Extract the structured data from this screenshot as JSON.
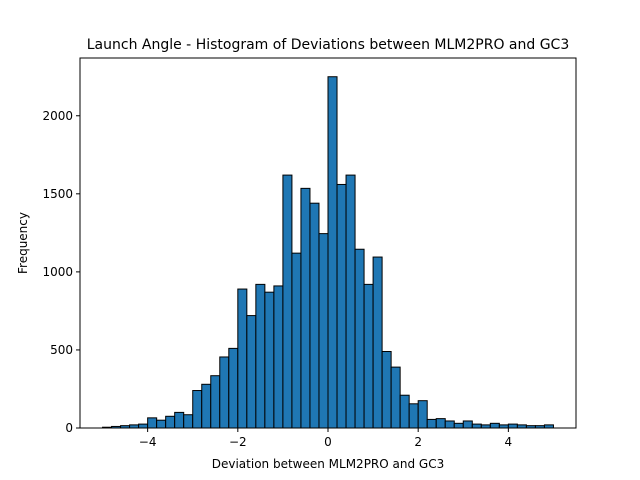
{
  "chart_data": {
    "type": "bar",
    "title": "Launch Angle - Histogram of Deviations between MLM2PRO and GC3",
    "xlabel": "Deviation between MLM2PRO and GC3",
    "ylabel": "Frequency",
    "xlim": [
      -5.5,
      5.5
    ],
    "ylim": [
      0,
      2370
    ],
    "bin_edges_start": -5.0,
    "bin_width": 0.2,
    "color": "#1f77b4",
    "edge_color": "#000000",
    "values": [
      5,
      10,
      15,
      20,
      25,
      65,
      50,
      75,
      100,
      85,
      240,
      280,
      335,
      455,
      510,
      890,
      720,
      920,
      870,
      910,
      1620,
      1120,
      1535,
      1440,
      1245,
      2250,
      1560,
      1620,
      1145,
      920,
      1095,
      490,
      390,
      210,
      155,
      175,
      55,
      60,
      45,
      30,
      45,
      25,
      20,
      30,
      20,
      25,
      20,
      15,
      15,
      20
    ],
    "xticks": [
      -4,
      -2,
      0,
      2,
      4
    ],
    "xtick_labels": [
      "−4",
      "−2",
      "0",
      "2",
      "4"
    ],
    "yticks": [
      0,
      500,
      1000,
      1500,
      2000
    ],
    "ytick_labels": [
      "0",
      "500",
      "1000",
      "1500",
      "2000"
    ],
    "grid": false
  }
}
